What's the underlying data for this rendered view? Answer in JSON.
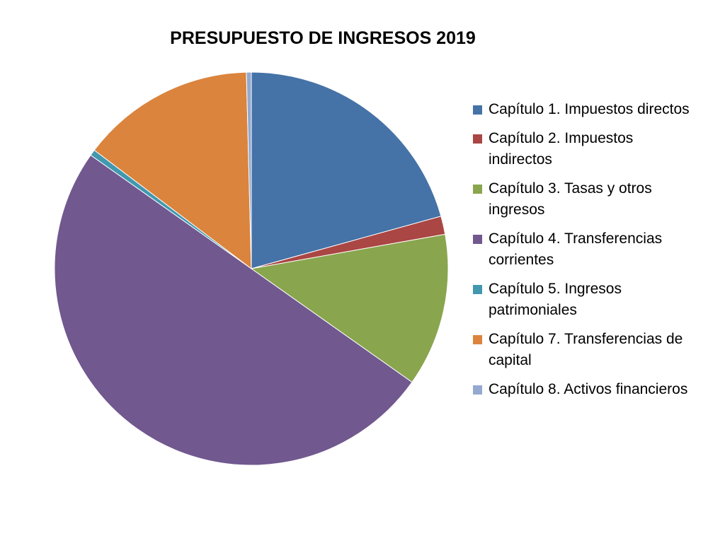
{
  "chart_data": {
    "type": "pie",
    "title": "PRESUPUESTO DE INGRESOS 2019",
    "legend_position": "right",
    "categories": [
      "Capítulo 1. Impuestos directos",
      "Capítulo 2. Impuestos indirectos",
      "Capítulo 3. Tasas y otros ingresos",
      "Capítulo 4. Transferencias corrientes",
      "Capítulo 5. Ingresos patrimoniales",
      "Capítulo 7. Transferencias de capital",
      "Capítulo 8. Activos financieros"
    ],
    "values": [
      20.7,
      1.5,
      12.6,
      50.0,
      0.5,
      14.3,
      0.4
    ],
    "unit": "percent (estimated)",
    "colors": [
      "#4572A7",
      "#AA4643",
      "#89A54E",
      "#71588F",
      "#4198AF",
      "#DB843D",
      "#93A9CF"
    ]
  }
}
